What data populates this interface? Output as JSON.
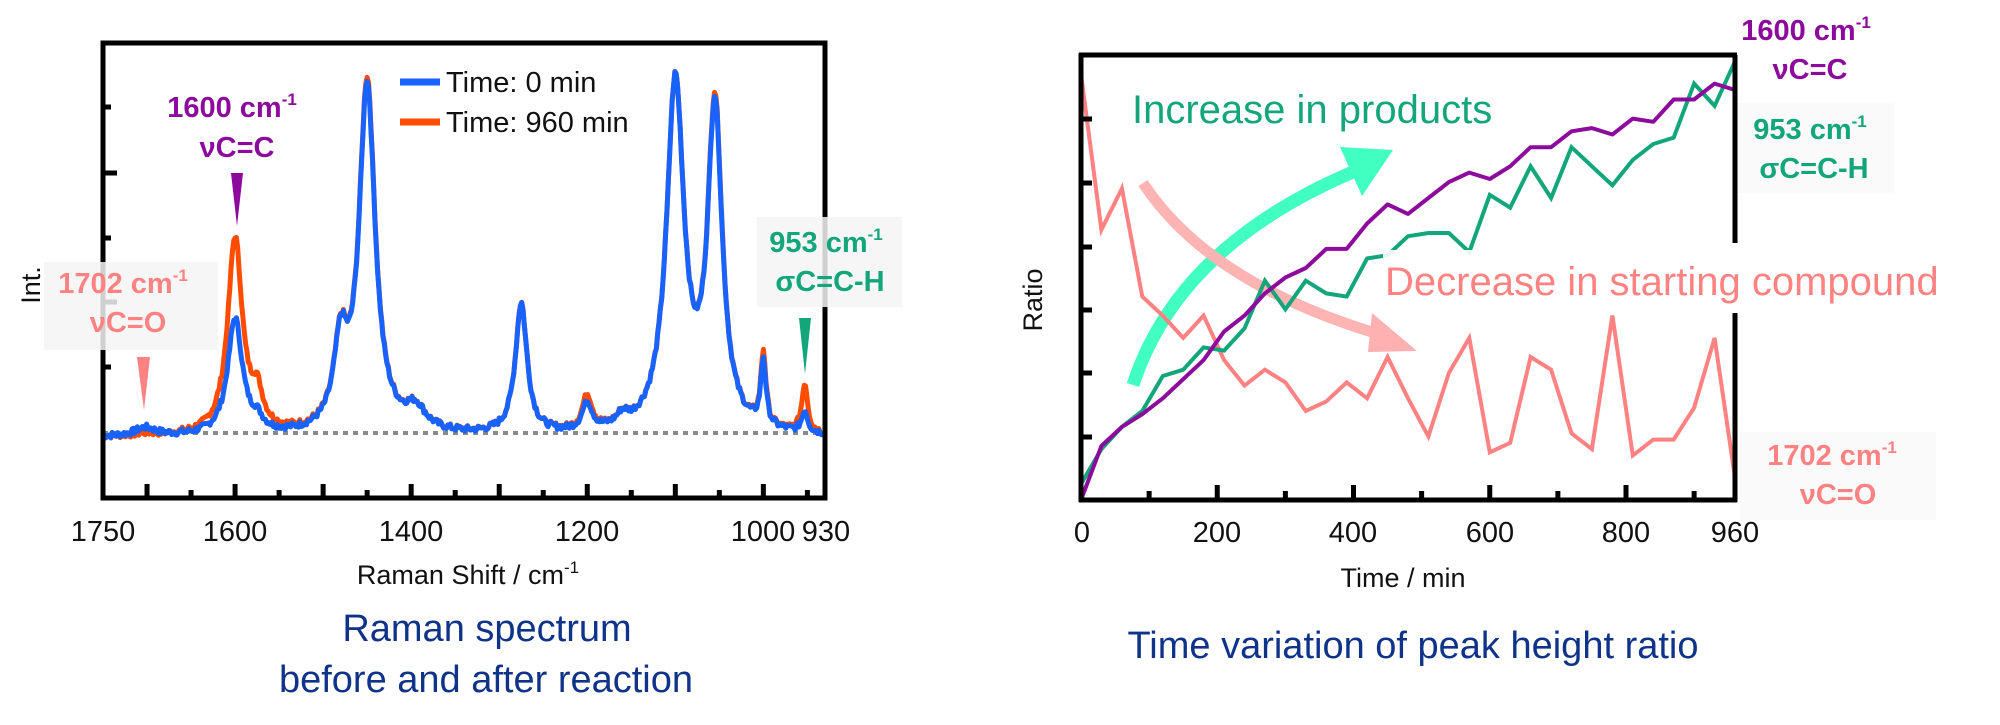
{
  "colors": {
    "spectrum_0min": "#1862ff",
    "spectrum_960min": "#ff4c00",
    "baseline": "#8a8a8a",
    "cc_1600": "#8c0a9c",
    "ch_953": "#12a67a",
    "co_1702": "#ff8282",
    "increase_arrow": "#40ffc0",
    "decrease_arrow": "#ffb0b0",
    "caption": "#0f3389",
    "axis": "#000000"
  },
  "left_chart": {
    "ylabel": "Int.",
    "xlabel_main": "Raman Shift / cm",
    "xlabel_sup": "-1",
    "caption_line1": "Raman spectrum",
    "caption_line2": "before and after reaction",
    "legend": [
      {
        "label": "Time: 0 min",
        "color_key": "spectrum_0min"
      },
      {
        "label": "Time: 960 min",
        "color_key": "spectrum_960min"
      }
    ],
    "xticks": [
      {
        "value": 1750,
        "label": "1750"
      },
      {
        "value": 1600,
        "label": "1600"
      },
      {
        "value": 1400,
        "label": "1400"
      },
      {
        "value": 1200,
        "label": "1200"
      },
      {
        "value": 1000,
        "label": "1000"
      },
      {
        "value": 930,
        "label": "930"
      }
    ],
    "annotations": {
      "cc": {
        "wavenumber": "1600 cm",
        "sup": "-1",
        "mode": "νC=C"
      },
      "co": {
        "wavenumber": "1702 cm",
        "sup": "-1",
        "mode": "νC=O"
      },
      "ch": {
        "wavenumber": "953 cm",
        "sup": "-1",
        "mode": "σC=C-H"
      }
    }
  },
  "right_chart": {
    "ylabel": "Ratio",
    "xlabel": "Time / min",
    "caption": "Time variation of peak height ratio",
    "increase_label": "Increase in products",
    "decrease_label": "Decrease in starting compound",
    "xticks": [
      {
        "value": 0,
        "label": "0"
      },
      {
        "value": 200,
        "label": "200"
      },
      {
        "value": 400,
        "label": "400"
      },
      {
        "value": 600,
        "label": "600"
      },
      {
        "value": 800,
        "label": "800"
      },
      {
        "value": 960,
        "label": "960"
      }
    ],
    "annotations": {
      "cc": {
        "wavenumber": "1600 cm",
        "sup": "-1",
        "mode": "νC=C"
      },
      "ch": {
        "wavenumber": "953 cm",
        "sup": "-1",
        "mode": "σC=C-H"
      },
      "co": {
        "wavenumber": "1702 cm",
        "sup": "-1",
        "mode": "νC=O"
      }
    }
  },
  "chart_data": [
    {
      "type": "line",
      "title": "Raman spectrum before and after reaction",
      "xlabel": "Raman Shift / cm-1",
      "ylabel": "Int.",
      "xlim": [
        1750,
        930
      ],
      "ylim": [
        -18,
        107
      ],
      "y_tick_labels_shown": false,
      "baseline": 0,
      "legend_position": "upper center",
      "peak_model": "lorentzian",
      "series": [
        {
          "name": "Time: 0 min",
          "peaks": [
            {
              "center": 1702,
              "height": 2.2,
              "width": 14
            },
            {
              "center": 1600,
              "height": 32,
              "width": 10
            },
            {
              "center": 1575,
              "height": 3,
              "width": 8
            },
            {
              "center": 1480,
              "height": 22,
              "width": 9
            },
            {
              "center": 1450,
              "height": 96,
              "width": 11
            },
            {
              "center": 1395,
              "height": 6,
              "width": 14
            },
            {
              "center": 1275,
              "height": 36,
              "width": 8
            },
            {
              "center": 1200,
              "height": 7.5,
              "width": 7
            },
            {
              "center": 1160,
              "height": 3,
              "width": 8
            },
            {
              "center": 1100,
              "height": 96,
              "width": 12
            },
            {
              "center": 1055,
              "height": 88,
              "width": 10
            },
            {
              "center": 1000,
              "height": 18,
              "width": 3.5
            },
            {
              "center": 953,
              "height": 6,
              "width": 4
            }
          ]
        },
        {
          "name": "Time: 960 min",
          "peaks": [
            {
              "center": 1702,
              "height": 0.5,
              "width": 14
            },
            {
              "center": 1600,
              "height": 54,
              "width": 10
            },
            {
              "center": 1575,
              "height": 9,
              "width": 8
            },
            {
              "center": 1480,
              "height": 22,
              "width": 9
            },
            {
              "center": 1450,
              "height": 97,
              "width": 11
            },
            {
              "center": 1395,
              "height": 6,
              "width": 14
            },
            {
              "center": 1275,
              "height": 36,
              "width": 8
            },
            {
              "center": 1200,
              "height": 9.5,
              "width": 7
            },
            {
              "center": 1160,
              "height": 3,
              "width": 8
            },
            {
              "center": 1100,
              "height": 96,
              "width": 12
            },
            {
              "center": 1055,
              "height": 89,
              "width": 10
            },
            {
              "center": 1000,
              "height": 20,
              "width": 3.5
            },
            {
              "center": 953,
              "height": 13.5,
              "width": 4
            }
          ]
        }
      ],
      "annotations": [
        {
          "text": "1600 cm-1 νC=C",
          "x": 1600
        },
        {
          "text": "1702 cm-1 νC=O",
          "x": 1702
        },
        {
          "text": "953 cm-1 σC=C-H",
          "x": 953
        }
      ]
    },
    {
      "type": "line",
      "title": "Time variation of peak height ratio",
      "xlabel": "Time / min",
      "ylabel": "Ratio",
      "xlim": [
        0,
        960
      ],
      "ylim": [
        0,
        7
      ],
      "y_tick_labels_shown": false,
      "x": [
        0,
        30,
        60,
        90,
        120,
        150,
        180,
        210,
        240,
        270,
        300,
        330,
        360,
        390,
        420,
        450,
        480,
        510,
        540,
        570,
        600,
        630,
        660,
        690,
        720,
        750,
        780,
        810,
        840,
        870,
        900,
        930,
        960
      ],
      "series": [
        {
          "name": "1600 cm-1 νC=C",
          "color_key": "cc_1600",
          "values": [
            0.0,
            0.85,
            1.15,
            1.35,
            1.6,
            1.9,
            2.2,
            2.65,
            2.9,
            3.25,
            3.5,
            3.65,
            3.95,
            3.95,
            4.35,
            4.65,
            4.5,
            4.75,
            5.0,
            5.15,
            5.05,
            5.25,
            5.55,
            5.55,
            5.8,
            5.85,
            5.75,
            6.0,
            5.95,
            6.3,
            6.3,
            6.55,
            6.45
          ]
        },
        {
          "name": "953 cm-1 σC=C-H",
          "color_key": "ch_953",
          "values": [
            0.25,
            0.8,
            1.15,
            1.4,
            1.95,
            2.05,
            2.4,
            2.35,
            2.7,
            3.45,
            3.0,
            3.45,
            3.25,
            3.2,
            3.8,
            3.85,
            4.15,
            4.2,
            4.2,
            3.9,
            4.8,
            4.6,
            5.25,
            4.75,
            5.55,
            5.25,
            4.95,
            5.35,
            5.6,
            5.7,
            6.55,
            6.2,
            6.9
          ]
        },
        {
          "name": "1702 cm-1 νC=O",
          "color_key": "co_1702",
          "values": [
            6.7,
            4.25,
            4.9,
            3.2,
            2.9,
            2.55,
            2.9,
            2.2,
            1.8,
            2.05,
            1.85,
            1.4,
            1.55,
            1.85,
            1.6,
            2.25,
            1.6,
            1.0,
            2.0,
            2.55,
            0.75,
            0.9,
            2.25,
            2.05,
            1.05,
            0.8,
            2.9,
            0.7,
            0.95,
            0.95,
            1.45,
            2.55,
            0.35
          ]
        }
      ],
      "annotations": [
        {
          "text": "Increase in products",
          "type": "arrow-up"
        },
        {
          "text": "Decrease in starting compound",
          "type": "arrow-down"
        }
      ]
    }
  ]
}
